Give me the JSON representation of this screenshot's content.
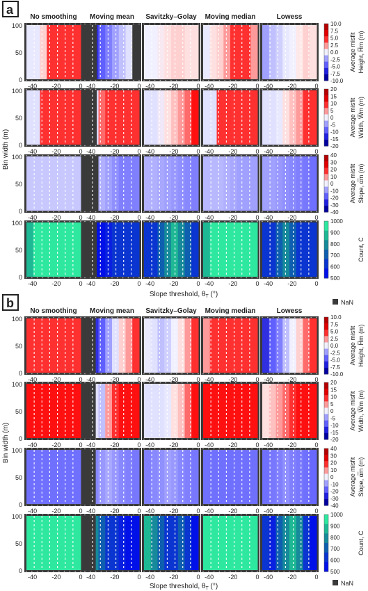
{
  "panel_labels": [
    "a",
    "b"
  ],
  "methods": [
    "No smoothing",
    "Moving mean",
    "Savitzky–Golay",
    "Moving median",
    "Lowess"
  ],
  "xlabel_html": "Slope threshold, θ",
  "xlabel_sub": "T",
  "xlabel_unit": " (°)",
  "ylabel": "Bin width (m)",
  "nan_label": "NaN",
  "colorbars": [
    {
      "title1": "Average misfit",
      "title2": "Height, H̅m (m)",
      "ticks": [
        "10.0",
        "7.5",
        "5.0",
        "2.5",
        "0.0",
        "-2.5",
        "-5.0",
        "-7.5",
        "-10.0"
      ],
      "colors": [
        "#b40000",
        "#e00000",
        "#ff3030",
        "#ff9a9a",
        "#f0f0ff",
        "#a0a0ff",
        "#6060ff",
        "#2020e0",
        "#0000a0"
      ]
    },
    {
      "title1": "Average misfit",
      "title2": "Width, W̅m (m)",
      "ticks": [
        "20",
        "15",
        "10",
        "5",
        "0",
        "-5",
        "-10",
        "-15",
        "-20"
      ],
      "colors": [
        "#b40000",
        "#e00000",
        "#ff3030",
        "#ff9a9a",
        "#f0f0ff",
        "#a0a0ff",
        "#6060ff",
        "#2020e0",
        "#0000a0"
      ]
    },
    {
      "title1": "Average misfit",
      "title2": "Slope, α̅m (m)",
      "ticks": [
        "40",
        "30",
        "20",
        "10",
        "0",
        "-10",
        "-20",
        "-30",
        "-40"
      ],
      "colors": [
        "#b40000",
        "#e00000",
        "#ff3030",
        "#ff9a9a",
        "#f0f0ff",
        "#a0a0ff",
        "#6060ff",
        "#2020e0",
        "#0000a0"
      ]
    },
    {
      "title1": "",
      "title2": "Count, C",
      "ticks": [
        "1000",
        "900",
        "800",
        "700",
        "600",
        "500"
      ],
      "colors": [
        "#2ee8a0",
        "#1fb895",
        "#168a9a",
        "#0f5fb0",
        "#0a35d0",
        "#0010e8"
      ]
    }
  ],
  "chart_data": [
    {
      "type": "heatmap",
      "panel": "a",
      "x_ticks": [
        "-40",
        "-20",
        "0"
      ],
      "y_ticks": [
        "0",
        "50",
        "100"
      ],
      "xlim": [
        -45,
        0
      ],
      "ylim": [
        0,
        100
      ],
      "rows": [
        {
          "variable": "Height misfit",
          "cells": [
            {
              "method": "No smoothing",
              "nan_left": 0,
              "bands": [
                "#e8e8ff",
                "#e8e8ff",
                "#ffd0d0",
                "#ff3030",
                "#ff3030",
                "#ff3030",
                "#ff3030",
                "#ff3030"
              ]
            },
            {
              "method": "Moving mean",
              "nan_left": 0.22,
              "bands": [
                "#1010c0",
                "#3030e0",
                "#6060ff",
                "#8080ff",
                "#a0a0ff",
                "#c0c0ff",
                "#e0e0ff",
                "#3a3a3a"
              ]
            },
            {
              "method": "Savitzky–Golay",
              "nan_left": 0,
              "bands": [
                "#f0f0ff",
                "#f0f0ff",
                "#f8e8f0",
                "#ffe0e0",
                "#ffd0d0",
                "#ffd0d0",
                "#ffe0e0",
                "#ffe0e0"
              ]
            },
            {
              "method": "Moving median",
              "nan_left": 0,
              "bands": [
                "#e8e8ff",
                "#ffe0e0",
                "#ffd0d0",
                "#ff9a9a",
                "#ff3030",
                "#ff3030",
                "#ff3030",
                "#ff9a9a"
              ]
            },
            {
              "method": "Lowess",
              "nan_left": 0,
              "bands": [
                "#a0a0ff",
                "#c0c0ff",
                "#d0d0ff",
                "#e8e8ff",
                "#f0f0ff",
                "#ffe8e8",
                "#ffd0d0",
                "#ffe0e0"
              ]
            }
          ]
        },
        {
          "variable": "Width misfit",
          "cells": [
            {
              "method": "No smoothing",
              "nan_left": 0,
              "bands": [
                "#e0e0ff",
                "#e0e0ff",
                "#ff3030",
                "#ff3030",
                "#ff3030",
                "#ff3030",
                "#ff3030",
                "#ff3030"
              ]
            },
            {
              "method": "Moving mean",
              "nan_left": 0.22,
              "bands": [
                "#3a3a3a",
                "#e0e0ff",
                "#ff6a6a",
                "#ff3030",
                "#ff3030",
                "#ff3030",
                "#ff3030",
                "#ff3030"
              ]
            },
            {
              "method": "Savitzky–Golay",
              "nan_left": 0,
              "bands": [
                "#e0e0ff",
                "#e0e0ff",
                "#f0e8f8",
                "#ffe0e0",
                "#ffc0c0",
                "#ff9a9a",
                "#ff6a6a",
                "#ff1010"
              ]
            },
            {
              "method": "Moving median",
              "nan_left": 0,
              "bands": [
                "#e0e0ff",
                "#e0e0ff",
                "#ff3030",
                "#ff3030",
                "#ff3030",
                "#ff3030",
                "#ff3030",
                "#ff3030"
              ]
            },
            {
              "method": "Lowess",
              "nan_left": 0,
              "bands": [
                "#e0e0ff",
                "#e0e0ff",
                "#e8e8ff",
                "#ffe0e0",
                "#ffc0c0",
                "#ff9a9a",
                "#ff3030",
                "#ff3030"
              ]
            }
          ]
        },
        {
          "variable": "Slope misfit",
          "cells": [
            {
              "method": "No smoothing",
              "nan_left": 0,
              "bands": [
                "#c8c8ff",
                "#c8c8ff",
                "#c8c8ff",
                "#c8c8ff",
                "#c8c8ff",
                "#c8c8ff",
                "#c8c8ff",
                "#c8c8ff"
              ]
            },
            {
              "method": "Moving mean",
              "nan_left": 0.25,
              "bands": [
                "#3a3a3a",
                "#c0c0ff",
                "#b0b0ff",
                "#a0a0ff",
                "#9090ff",
                "#8080ff",
                "#8080ff",
                "#8080ff"
              ]
            },
            {
              "method": "Savitzky–Golay",
              "nan_left": 0,
              "bands": [
                "#b0b0ff",
                "#b0b0ff",
                "#a8a8ff",
                "#a0a0ff",
                "#9898ff",
                "#9090ff",
                "#8888ff",
                "#8080ff"
              ]
            },
            {
              "method": "Moving median",
              "nan_left": 0,
              "bands": [
                "#b8b8ff",
                "#b8b8ff",
                "#b8b8ff",
                "#b0b0ff",
                "#a8a8ff",
                "#a0a0ff",
                "#a0a0ff",
                "#a0a0ff"
              ]
            },
            {
              "method": "Lowess",
              "nan_left": 0,
              "bands": [
                "#a0a0ff",
                "#a0a0ff",
                "#9898ff",
                "#9090ff",
                "#8888ff",
                "#8080ff",
                "#7878ff",
                "#7070ff"
              ]
            }
          ]
        },
        {
          "variable": "Count",
          "cells": [
            {
              "method": "No smoothing",
              "nan_left": 0,
              "bands": [
                "#1fb895",
                "#2ee8a0",
                "#2ee8a0",
                "#2ee8a0",
                "#2ee8a0",
                "#2ee8a0",
                "#2ee8a0",
                "#2ee8a0"
              ]
            },
            {
              "method": "Moving mean",
              "nan_left": 0.22,
              "bands": [
                "#3a3a3a",
                "#0010e8",
                "#0010e8",
                "#0a20e0",
                "#0a35d0",
                "#0a35d0",
                "#0a35d0",
                "#0a35d0"
              ]
            },
            {
              "method": "Savitzky–Golay",
              "nan_left": 0,
              "bands": [
                "#0a35d0",
                "#0a35d0",
                "#0f5fb0",
                "#168a9a",
                "#1fb895",
                "#168a9a",
                "#0f5fb0",
                "#0a35d0"
              ]
            },
            {
              "method": "Moving median",
              "nan_left": 0,
              "bands": [
                "#1fb895",
                "#2ee8a0",
                "#2ee8a0",
                "#2ee8a0",
                "#2ee8a0",
                "#2ee8a0",
                "#2ee8a0",
                "#2ee8a0"
              ]
            },
            {
              "method": "Lowess",
              "nan_left": 0,
              "bands": [
                "#0a35d0",
                "#0a35d0",
                "#0f5fb0",
                "#168a9a",
                "#0f5fb0",
                "#0a35d0",
                "#0a35d0",
                "#0a35d0"
              ]
            }
          ]
        }
      ]
    },
    {
      "type": "heatmap",
      "panel": "b",
      "x_ticks": [
        "-40",
        "-20",
        "0"
      ],
      "y_ticks": [
        "0",
        "50",
        "100"
      ],
      "xlim": [
        -45,
        0
      ],
      "ylim": [
        0,
        100
      ],
      "rows": [
        {
          "variable": "Height misfit",
          "cells": [
            {
              "method": "No smoothing",
              "nan_left": 0,
              "bands": [
                "#ff3030",
                "#ff3030",
                "#ff3030",
                "#ff3030",
                "#ff3030",
                "#ff3030",
                "#ff3030",
                "#ff3030"
              ]
            },
            {
              "method": "Moving mean",
              "nan_left": 0.2,
              "bands": [
                "#3a3a3a",
                "#3030e0",
                "#6060ff",
                "#a0a0ff",
                "#e0e0ff",
                "#ffd0d0",
                "#ff9a9a",
                "#ff3030"
              ]
            },
            {
              "method": "Savitzky–Golay",
              "nan_left": 0,
              "bands": [
                "#e8e8ff",
                "#e0e0ff",
                "#c0c0ff",
                "#d0d0ff",
                "#f0f0ff",
                "#ffe0e0",
                "#ff9a9a",
                "#ff3030"
              ]
            },
            {
              "method": "Moving median",
              "nan_left": 0,
              "bands": [
                "#ff9a9a",
                "#ff3030",
                "#ff3030",
                "#ff3030",
                "#ff3030",
                "#ff3030",
                "#ff3030",
                "#ff3030"
              ]
            },
            {
              "method": "Lowess",
              "nan_left": 0,
              "bands": [
                "#3030e0",
                "#6060ff",
                "#8080ff",
                "#c0c0ff",
                "#f0f0ff",
                "#ffd0d0",
                "#ff6a6a",
                "#ff3030"
              ]
            }
          ]
        },
        {
          "variable": "Width misfit",
          "cells": [
            {
              "method": "No smoothing",
              "nan_left": 0,
              "bands": [
                "#ff1010",
                "#ff1010",
                "#ff1010",
                "#ff1010",
                "#ff1010",
                "#ff1010",
                "#ff1010",
                "#ff1010"
              ]
            },
            {
              "method": "Moving mean",
              "nan_left": 0.2,
              "bands": [
                "#3a3a3a",
                "#e0e0ff",
                "#c0c0ff",
                "#ff9a9a",
                "#ff3030",
                "#ff1010",
                "#ff1010",
                "#ff1010"
              ]
            },
            {
              "method": "Savitzky–Golay",
              "nan_left": 0,
              "bands": [
                "#e0e0ff",
                "#e0e0ff",
                "#e0e0ff",
                "#e8e8ff",
                "#ffe0e0",
                "#ffc0c0",
                "#ff6a6a",
                "#ff1010"
              ]
            },
            {
              "method": "Moving median",
              "nan_left": 0,
              "bands": [
                "#ff1010",
                "#ff1010",
                "#ff1010",
                "#ff1010",
                "#ff1010",
                "#ff1010",
                "#ff1010",
                "#ff1010"
              ]
            },
            {
              "method": "Lowess",
              "nan_left": 0,
              "bands": [
                "#ffe0e0",
                "#ffc0c0",
                "#ff9a9a",
                "#ff6a6a",
                "#ff3030",
                "#ff1010",
                "#ff1010",
                "#ff1010"
              ]
            }
          ]
        },
        {
          "variable": "Slope misfit",
          "cells": [
            {
              "method": "No smoothing",
              "nan_left": 0,
              "bands": [
                "#7070ff",
                "#7070ff",
                "#7070ff",
                "#7070ff",
                "#7070ff",
                "#7070ff",
                "#7070ff",
                "#7070ff"
              ]
            },
            {
              "method": "Moving mean",
              "nan_left": 0.2,
              "bands": [
                "#3a3a3a",
                "#8888ff",
                "#9898ff",
                "#a8a8ff",
                "#9898ff",
                "#8888ff",
                "#8080ff",
                "#7878ff"
              ]
            },
            {
              "method": "Savitzky–Golay",
              "nan_left": 0,
              "bands": [
                "#8080ff",
                "#8888ff",
                "#9090ff",
                "#a0a0ff",
                "#9898ff",
                "#8888ff",
                "#8080ff",
                "#7878ff"
              ]
            },
            {
              "method": "Moving median",
              "nan_left": 0,
              "bands": [
                "#7070ff",
                "#7070ff",
                "#7070ff",
                "#7070ff",
                "#7070ff",
                "#7070ff",
                "#7070ff",
                "#7070ff"
              ]
            },
            {
              "method": "Lowess",
              "nan_left": 0,
              "bands": [
                "#7070ff",
                "#7878ff",
                "#8080ff",
                "#9090ff",
                "#8080ff",
                "#7878ff",
                "#7070ff",
                "#6868ff"
              ]
            }
          ]
        },
        {
          "variable": "Count",
          "cells": [
            {
              "method": "No smoothing",
              "nan_left": 0,
              "bands": [
                "#2ee8a0",
                "#2ee8a0",
                "#2ee8a0",
                "#2ee8a0",
                "#2ee8a0",
                "#2ee8a0",
                "#2ee8a0",
                "#2ee8a0"
              ]
            },
            {
              "method": "Moving mean",
              "nan_left": 0.2,
              "bands": [
                "#3a3a3a",
                "#168a9a",
                "#0f5fb0",
                "#0a35d0",
                "#0a35d0",
                "#0a20e0",
                "#0010e8",
                "#0010e8"
              ]
            },
            {
              "method": "Savitzky–Golay",
              "nan_left": 0,
              "bands": [
                "#1fb895",
                "#168a9a",
                "#0f5fb0",
                "#0a35d0",
                "#0a35d0",
                "#0f5fb0",
                "#0a35d0",
                "#0010e8"
              ]
            },
            {
              "method": "Moving median",
              "nan_left": 0,
              "bands": [
                "#2ee8a0",
                "#2ee8a0",
                "#2ee8a0",
                "#2ee8a0",
                "#2ee8a0",
                "#2ee8a0",
                "#2ee8a0",
                "#2ee8a0"
              ]
            },
            {
              "method": "Lowess",
              "nan_left": 0,
              "bands": [
                "#0a35d0",
                "#0a20e0",
                "#0f5fb0",
                "#168a9a",
                "#1fb895",
                "#168a9a",
                "#0a35d0",
                "#0010e8"
              ]
            }
          ]
        }
      ]
    }
  ]
}
